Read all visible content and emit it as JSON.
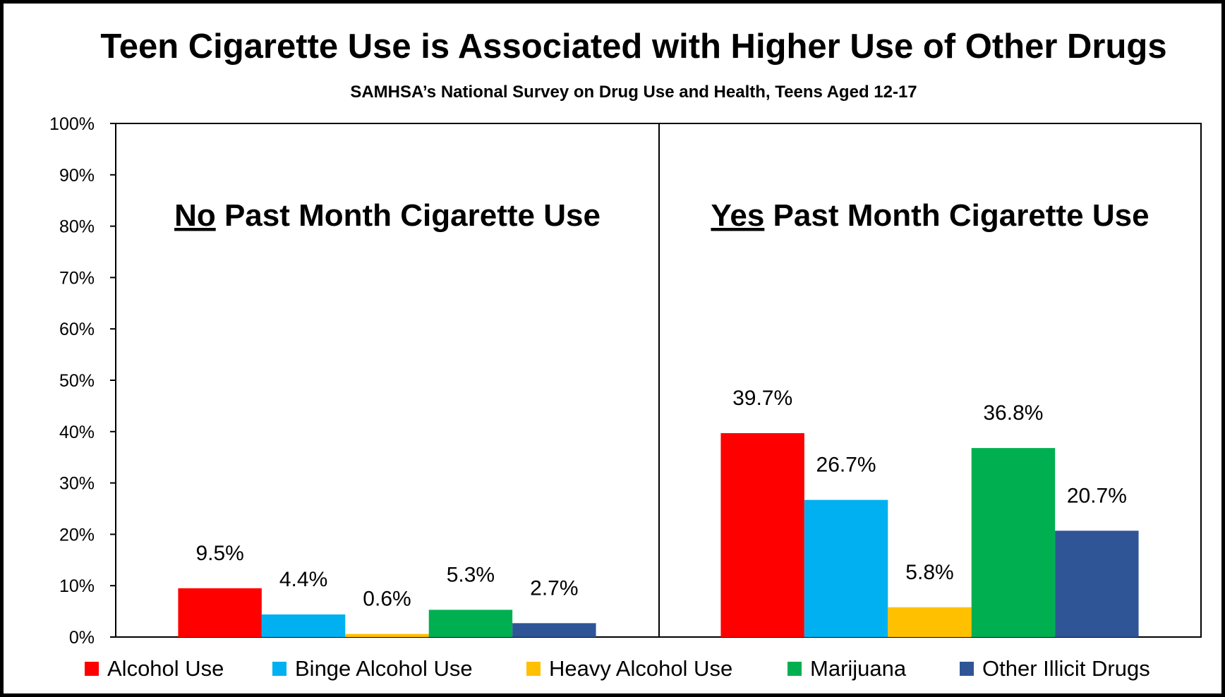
{
  "chart_data": {
    "type": "bar",
    "title": "Teen Cigarette Use is Associated with Higher Use of Other Drugs",
    "subtitle": "SAMHSA’s National Survey on Drug Use and Health, Teens Aged 12-17",
    "ylim": [
      0,
      100
    ],
    "yticks": [
      0,
      10,
      20,
      30,
      40,
      50,
      60,
      70,
      80,
      90,
      100
    ],
    "ytick_labels": [
      "0%",
      "10%",
      "20%",
      "30%",
      "40%",
      "50%",
      "60%",
      "70%",
      "80%",
      "90%",
      "100%"
    ],
    "grid": false,
    "legend_position": "bottom",
    "panels": [
      {
        "title_emphasis": "No",
        "title_rest": " Past Month Cigarette Use"
      },
      {
        "title_emphasis": "Yes",
        "title_rest": " Past Month Cigarette Use"
      }
    ],
    "series": [
      {
        "name": "Alcohol Use",
        "color": "#FF0000",
        "values": [
          9.5,
          39.7
        ],
        "labels": [
          "9.5%",
          "39.7%"
        ]
      },
      {
        "name": "Binge Alcohol Use",
        "color": "#00B0F0",
        "values": [
          4.4,
          26.7
        ],
        "labels": [
          "4.4%",
          "26.7%"
        ]
      },
      {
        "name": "Heavy Alcohol Use",
        "color": "#FFC000",
        "values": [
          0.6,
          5.8
        ],
        "labels": [
          "0.6%",
          "5.8%"
        ]
      },
      {
        "name": "Marijuana",
        "color": "#00B050",
        "values": [
          5.3,
          36.8
        ],
        "labels": [
          "5.3%",
          "36.8%"
        ]
      },
      {
        "name": "Other Illicit Drugs",
        "color": "#2F5597",
        "values": [
          2.7,
          20.7
        ],
        "labels": [
          "2.7%",
          "20.7%"
        ]
      }
    ]
  }
}
